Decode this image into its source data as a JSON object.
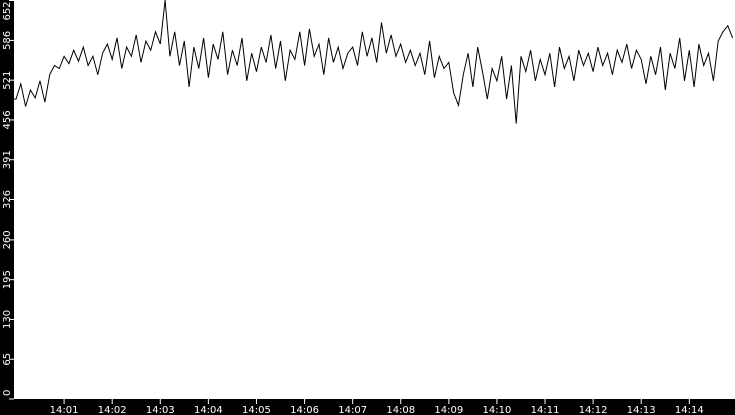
{
  "chart_data": {
    "type": "line",
    "title": "",
    "xlabel": "",
    "ylabel": "",
    "ylim": [
      0,
      652
    ],
    "xlim": [
      "14:00:00",
      "14:14:57"
    ],
    "grid": false,
    "y_ticks": [
      "0",
      "65",
      "130",
      "195",
      "260",
      "326",
      "391",
      "456",
      "521",
      "586",
      "652"
    ],
    "x_ticks": [
      "14:01",
      "14:02",
      "14:03",
      "14:04",
      "14:05",
      "14:06",
      "14:07",
      "14:08",
      "14:09",
      "14:10",
      "14:11",
      "14:12",
      "14:13",
      "14:14"
    ],
    "colors": {
      "background": "#000000",
      "plot": "#ffffff",
      "line": "#000000",
      "axis_text": "#ffffff"
    },
    "series": [
      {
        "x": [
          "14:00:00",
          "14:00:06",
          "14:00:12",
          "14:00:18",
          "14:00:24",
          "14:00:30",
          "14:00:36",
          "14:00:42",
          "14:00:48",
          "14:00:54",
          "14:01:00",
          "14:01:06",
          "14:01:12",
          "14:01:18",
          "14:01:24",
          "14:01:30",
          "14:01:36",
          "14:01:42",
          "14:01:48",
          "14:01:54",
          "14:02:00",
          "14:02:06",
          "14:02:12",
          "14:02:18",
          "14:02:24",
          "14:02:30",
          "14:02:36",
          "14:02:42",
          "14:02:48",
          "14:02:54",
          "14:03:00",
          "14:03:06",
          "14:03:12",
          "14:03:18",
          "14:03:24",
          "14:03:30",
          "14:03:36",
          "14:03:42",
          "14:03:48",
          "14:03:54",
          "14:04:00",
          "14:04:06",
          "14:04:12",
          "14:04:18",
          "14:04:24",
          "14:04:30",
          "14:04:36",
          "14:04:42",
          "14:04:48",
          "14:04:54",
          "14:05:00",
          "14:05:06",
          "14:05:12",
          "14:05:18",
          "14:05:24",
          "14:05:30",
          "14:05:36",
          "14:05:42",
          "14:05:48",
          "14:05:54",
          "14:06:00",
          "14:06:06",
          "14:06:12",
          "14:06:18",
          "14:06:24",
          "14:06:30",
          "14:06:36",
          "14:06:42",
          "14:06:48",
          "14:06:54",
          "14:07:00",
          "14:07:06",
          "14:07:12",
          "14:07:18",
          "14:07:24",
          "14:07:30",
          "14:07:36",
          "14:07:42",
          "14:07:48",
          "14:07:54",
          "14:08:00",
          "14:08:06",
          "14:08:12",
          "14:08:18",
          "14:08:24",
          "14:08:30",
          "14:08:36",
          "14:08:42",
          "14:08:48",
          "14:08:54",
          "14:09:00",
          "14:09:06",
          "14:09:12",
          "14:09:18",
          "14:09:24",
          "14:09:30",
          "14:09:36",
          "14:09:42",
          "14:09:48",
          "14:09:54",
          "14:10:00",
          "14:10:06",
          "14:10:12",
          "14:10:18",
          "14:10:24",
          "14:10:30",
          "14:10:36",
          "14:10:42",
          "14:10:48",
          "14:10:54",
          "14:11:00",
          "14:11:06",
          "14:11:12",
          "14:11:18",
          "14:11:24",
          "14:11:30",
          "14:11:36",
          "14:11:42",
          "14:11:48",
          "14:11:54",
          "14:12:00",
          "14:12:06",
          "14:12:12",
          "14:12:18",
          "14:12:24",
          "14:12:30",
          "14:12:36",
          "14:12:42",
          "14:12:48",
          "14:12:54",
          "14:13:00",
          "14:13:06",
          "14:13:12",
          "14:13:18",
          "14:13:24",
          "14:13:30",
          "14:13:36",
          "14:13:42",
          "14:13:48",
          "14:13:54",
          "14:14:00",
          "14:14:06",
          "14:14:12",
          "14:14:18",
          "14:14:24",
          "14:14:30",
          "14:14:36",
          "14:14:42",
          "14:14:48",
          "14:14:54"
        ],
        "values": [
          490,
          515,
          478,
          505,
          492,
          520,
          485,
          530,
          545,
          540,
          560,
          548,
          570,
          552,
          575,
          545,
          560,
          530,
          565,
          580,
          555,
          590,
          540,
          575,
          560,
          595,
          550,
          585,
          570,
          600,
          580,
          652,
          560,
          600,
          545,
          585,
          510,
          575,
          540,
          590,
          525,
          580,
          555,
          600,
          530,
          570,
          545,
          590,
          520,
          565,
          535,
          575,
          550,
          595,
          540,
          585,
          520,
          570,
          555,
          600,
          545,
          605,
          560,
          580,
          530,
          590,
          550,
          575,
          540,
          565,
          575,
          545,
          600,
          560,
          590,
          550,
          615,
          565,
          595,
          560,
          580,
          550,
          570,
          545,
          565,
          530,
          585,
          525,
          560,
          540,
          550,
          500,
          480,
          530,
          565,
          510,
          575,
          535,
          490,
          540,
          520,
          560,
          490,
          545,
          450,
          560,
          535,
          570,
          520,
          555,
          530,
          565,
          510,
          575,
          540,
          560,
          520,
          570,
          545,
          565,
          535,
          575,
          545,
          565,
          530,
          570,
          550,
          580,
          540,
          570,
          555,
          515,
          560,
          530,
          575,
          505,
          565,
          540,
          590,
          520,
          570,
          510,
          580,
          545,
          565,
          520,
          585,
          600,
          610,
          590
        ]
      }
    ]
  }
}
